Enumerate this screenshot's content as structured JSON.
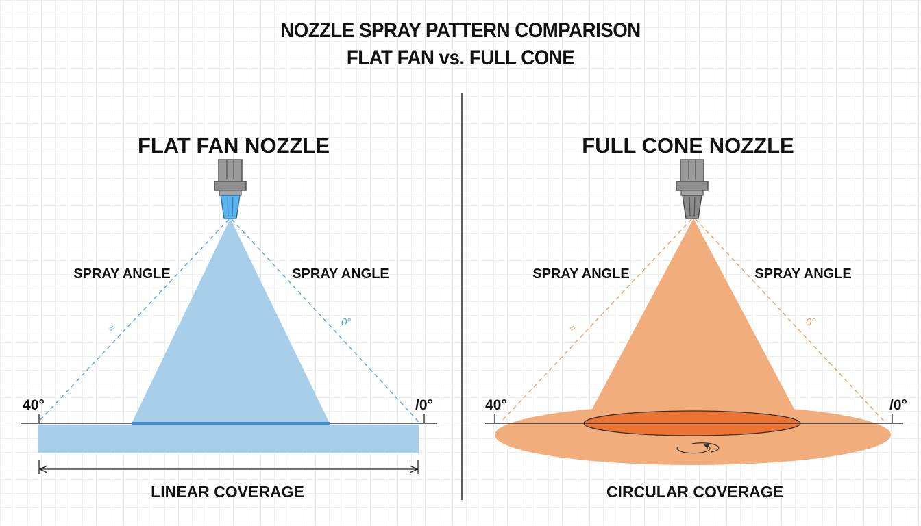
{
  "title": {
    "line1": "NOZZLE SPRAY PATTERN COMPARISON",
    "line2": "FLAT FAN vs. FULL CONE"
  },
  "left_panel": {
    "heading": "FLAT FAN NOZZLE",
    "spray_angle_left": "SPRAY ANGLE",
    "spray_angle_right": "SPRAY ANGLE",
    "angle_left": "40°",
    "angle_right": "/0°",
    "small_left": "≈",
    "small_right": "0°",
    "coverage_label": "LINEAR COVERAGE",
    "accent_color": "#a8cfea",
    "line_color": "#3d8fd1"
  },
  "right_panel": {
    "heading": "FULL CONE NOZZLE",
    "spray_angle_left": "SPRAY ANGLE",
    "spray_angle_right": "SPRAY ANGLE",
    "angle_left": "40°",
    "angle_right": "/0°",
    "small_left": "≈",
    "small_right": "0°",
    "coverage_label": "CIRCULAR COVERAGE",
    "accent_color": "#f2ad7c",
    "core_color": "#ec7332"
  },
  "icons": {
    "left_nozzle": "flat-fan-nozzle-icon",
    "right_nozzle": "full-cone-nozzle-icon",
    "rotation": "rotation-arrow-icon"
  }
}
